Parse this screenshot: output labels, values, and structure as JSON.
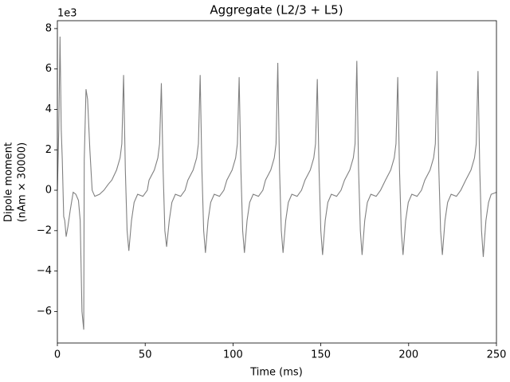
{
  "chart_data": {
    "type": "line",
    "title": "Aggregate (L2/3 + L5)",
    "xlabel": "Time (ms)",
    "ylabel": [
      "Dipole moment",
      "(nAm × 30000)"
    ],
    "y_offset_text": "1e3",
    "xlim": [
      0,
      250
    ],
    "ylim": [
      -7.56,
      8.39
    ],
    "xticks": [
      0,
      50,
      100,
      150,
      200,
      250
    ],
    "yticks": [
      {
        "value": -6,
        "label": "−6"
      },
      {
        "value": -4,
        "label": "−4"
      },
      {
        "value": -2,
        "label": "−2"
      },
      0,
      2,
      4,
      6,
      8
    ],
    "grid": false,
    "series": [
      {
        "color": "#808080",
        "x": [
          0,
          0.8,
          1.5,
          2.2,
          2.8,
          3.6,
          4.2,
          5,
          6,
          7.3,
          9,
          10.5,
          12,
          13,
          14,
          15,
          15.3,
          16.3,
          17.2,
          18.5,
          19.8,
          21.3,
          24,
          26.5,
          29,
          31,
          33.7,
          35.7,
          36.7,
          37.7,
          38.7,
          39.7,
          40.7,
          42.2,
          43.7,
          45.7,
          48.7,
          51.2,
          52.2,
          55.2,
          57.2,
          58.2,
          59.2,
          60.2,
          61.2,
          62.2,
          63.7,
          65.2,
          67.2,
          70.2,
          72.7,
          74.3,
          77.3,
          79.3,
          80.3,
          81.3,
          82.3,
          83.3,
          84.3,
          85.8,
          87.3,
          89.3,
          92.3,
          94.8,
          96.5,
          99.5,
          101.5,
          102.5,
          103.5,
          104.5,
          105.5,
          106.5,
          108,
          109.5,
          111.5,
          114.5,
          117,
          118.5,
          121.5,
          123.5,
          124.5,
          125.5,
          126.5,
          127.5,
          128.5,
          130,
          131.5,
          133.5,
          136.5,
          139,
          141,
          144,
          146,
          147,
          148,
          149,
          150,
          151,
          152.5,
          154,
          156,
          159,
          161.5,
          163.5,
          166.5,
          168.5,
          169.5,
          170.5,
          171.5,
          172.5,
          173.5,
          175,
          176.5,
          178.5,
          181.5,
          184,
          186.8,
          189.8,
          191.8,
          192.8,
          193.8,
          194.8,
          195.8,
          196.8,
          198.3,
          199.8,
          201.8,
          204.8,
          207.3,
          209.2,
          212.2,
          214.2,
          215.2,
          216.2,
          217.2,
          218.2,
          219.2,
          220.7,
          222.2,
          224.2,
          227.2,
          229.7,
          232.5,
          235.5,
          237.5,
          238.5,
          239.5,
          240.5,
          241.5,
          242.5,
          244,
          245.5,
          247,
          250
        ],
        "values": [
          0,
          3,
          7.6,
          3,
          1.5,
          -1.3,
          -1.5,
          -2.3,
          -1.8,
          -1,
          -0.1,
          -0.2,
          -0.5,
          -1.5,
          -6,
          -6.9,
          1.5,
          5.0,
          4.5,
          2,
          0,
          -0.3,
          -0.2,
          0,
          0.3,
          0.5,
          1.0,
          1.6,
          2.3,
          5.7,
          1.0,
          -2.0,
          -3.0,
          -1.5,
          -0.6,
          -0.2,
          -0.3,
          0.0,
          0.5,
          1.0,
          1.6,
          2.3,
          5.3,
          1.0,
          -2.0,
          -2.8,
          -1.5,
          -0.6,
          -0.2,
          -0.3,
          0.0,
          0.5,
          1.0,
          1.6,
          2.3,
          5.7,
          1.0,
          -2.0,
          -3.1,
          -1.5,
          -0.6,
          -0.2,
          -0.3,
          0.0,
          0.5,
          1.0,
          1.6,
          2.3,
          5.6,
          1.0,
          -2.0,
          -3.1,
          -1.5,
          -0.6,
          -0.2,
          -0.3,
          0.0,
          0.5,
          1.0,
          1.6,
          2.3,
          6.3,
          1.0,
          -2.0,
          -3.1,
          -1.5,
          -0.6,
          -0.2,
          -0.3,
          0.0,
          0.5,
          1.0,
          1.6,
          2.3,
          5.5,
          1.0,
          -2.0,
          -3.2,
          -1.5,
          -0.6,
          -0.2,
          -0.3,
          0.0,
          0.5,
          1.0,
          1.6,
          2.3,
          6.4,
          1.0,
          -2.0,
          -3.2,
          -1.5,
          -0.6,
          -0.2,
          -0.3,
          0.0,
          0.5,
          1.0,
          1.6,
          2.3,
          5.6,
          1.0,
          -2.0,
          -3.2,
          -1.5,
          -0.6,
          -0.2,
          -0.3,
          0.0,
          0.5,
          1.0,
          1.6,
          2.3,
          5.9,
          1.0,
          -2.0,
          -3.2,
          -1.5,
          -0.6,
          -0.2,
          -0.3,
          0.0,
          0.5,
          1.0,
          1.6,
          2.3,
          5.9,
          1.0,
          -2.0,
          -3.3,
          -1.5,
          -0.6,
          -0.2,
          -0.1
        ]
      }
    ]
  }
}
